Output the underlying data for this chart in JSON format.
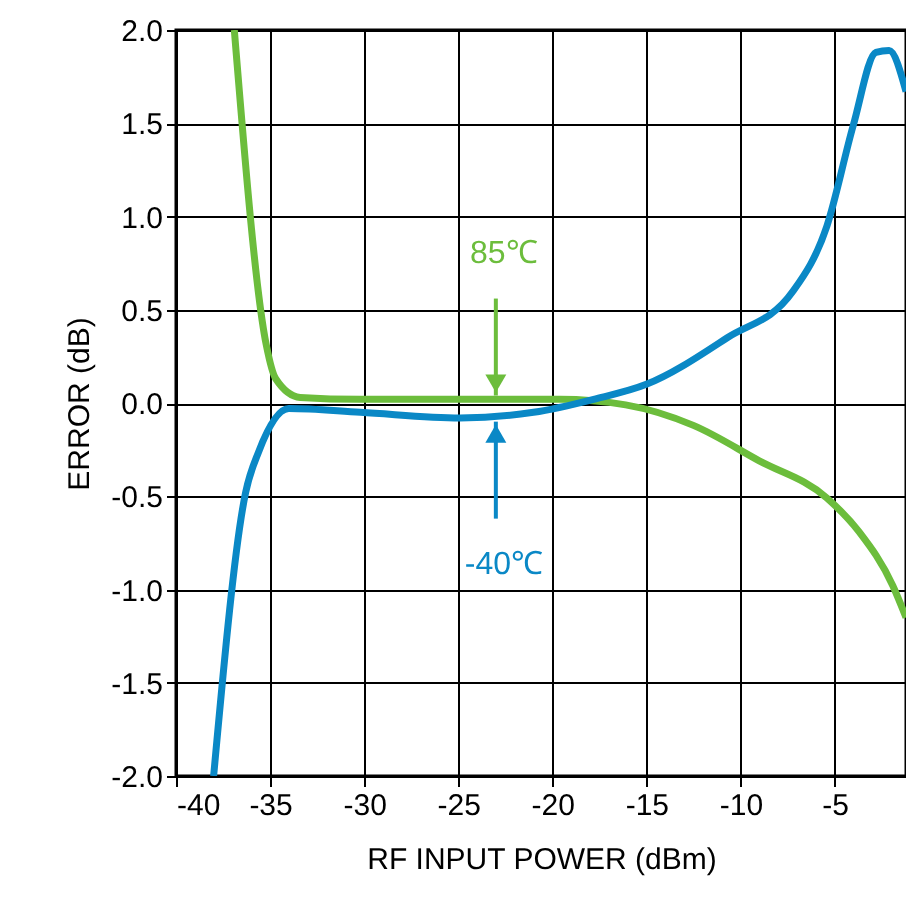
{
  "chart_data": {
    "type": "line",
    "xlabel": "RF INPUT POWER (dBm)",
    "ylabel": "ERROR (dB)",
    "xlim": [
      -40,
      -1.2
    ],
    "xticks": [
      -40,
      -35,
      -30,
      -25,
      -20,
      -15,
      -10,
      -5
    ],
    "ylim": [
      -2,
      2
    ],
    "yticks": [
      {
        "value": -2,
        "label": "-2.0"
      },
      {
        "value": -1.5,
        "label": "-1.5"
      },
      {
        "value": -1,
        "label": "-1.0"
      },
      {
        "value": -0.5,
        "label": "-0.5"
      },
      {
        "value": 0,
        "label": "0.0"
      },
      {
        "value": 0.5,
        "label": "0.5"
      },
      {
        "value": 1,
        "label": "1.0"
      },
      {
        "value": 1.5,
        "label": "1.5"
      },
      {
        "value": 2,
        "label": "2.0"
      }
    ],
    "grid": true,
    "line_style": "solid",
    "marker": "none",
    "series": [
      {
        "color": "#6cbd3c",
        "x": [
          -36.9,
          -35.2,
          -34.7,
          -33.4,
          -30.2,
          -25,
          -19.6,
          -16.1,
          -12.5,
          -9,
          -5.4,
          -3.7,
          -1.9,
          -1.2
        ],
        "values": [
          2,
          0.31,
          0.13,
          0.03,
          0.02,
          0.02,
          0.02,
          -0.01,
          -0.12,
          -0.31,
          -0.51,
          -0.69,
          -0.98,
          -1.15
        ]
      },
      {
        "color": "#0a88c6",
        "x": [
          -38,
          -36.3,
          -35.6,
          -34,
          -30.2,
          -24.9,
          -21,
          -17.8,
          -15,
          -10.7,
          -7.2,
          -5.4,
          -4,
          -2.8,
          -2.1,
          -1.2
        ],
        "values": [
          -2,
          -0.48,
          -0.26,
          -0.03,
          -0.05,
          -0.08,
          -0.05,
          0.02,
          0.1,
          0.35,
          0.6,
          0.95,
          1.49,
          1.88,
          1.89,
          1.67
        ]
      }
    ],
    "annotations": [
      {
        "text": "85℃",
        "x": -23,
        "y": 0.04
      },
      {
        "text": "-40℃",
        "x": -23,
        "y": -0.1
      }
    ]
  }
}
